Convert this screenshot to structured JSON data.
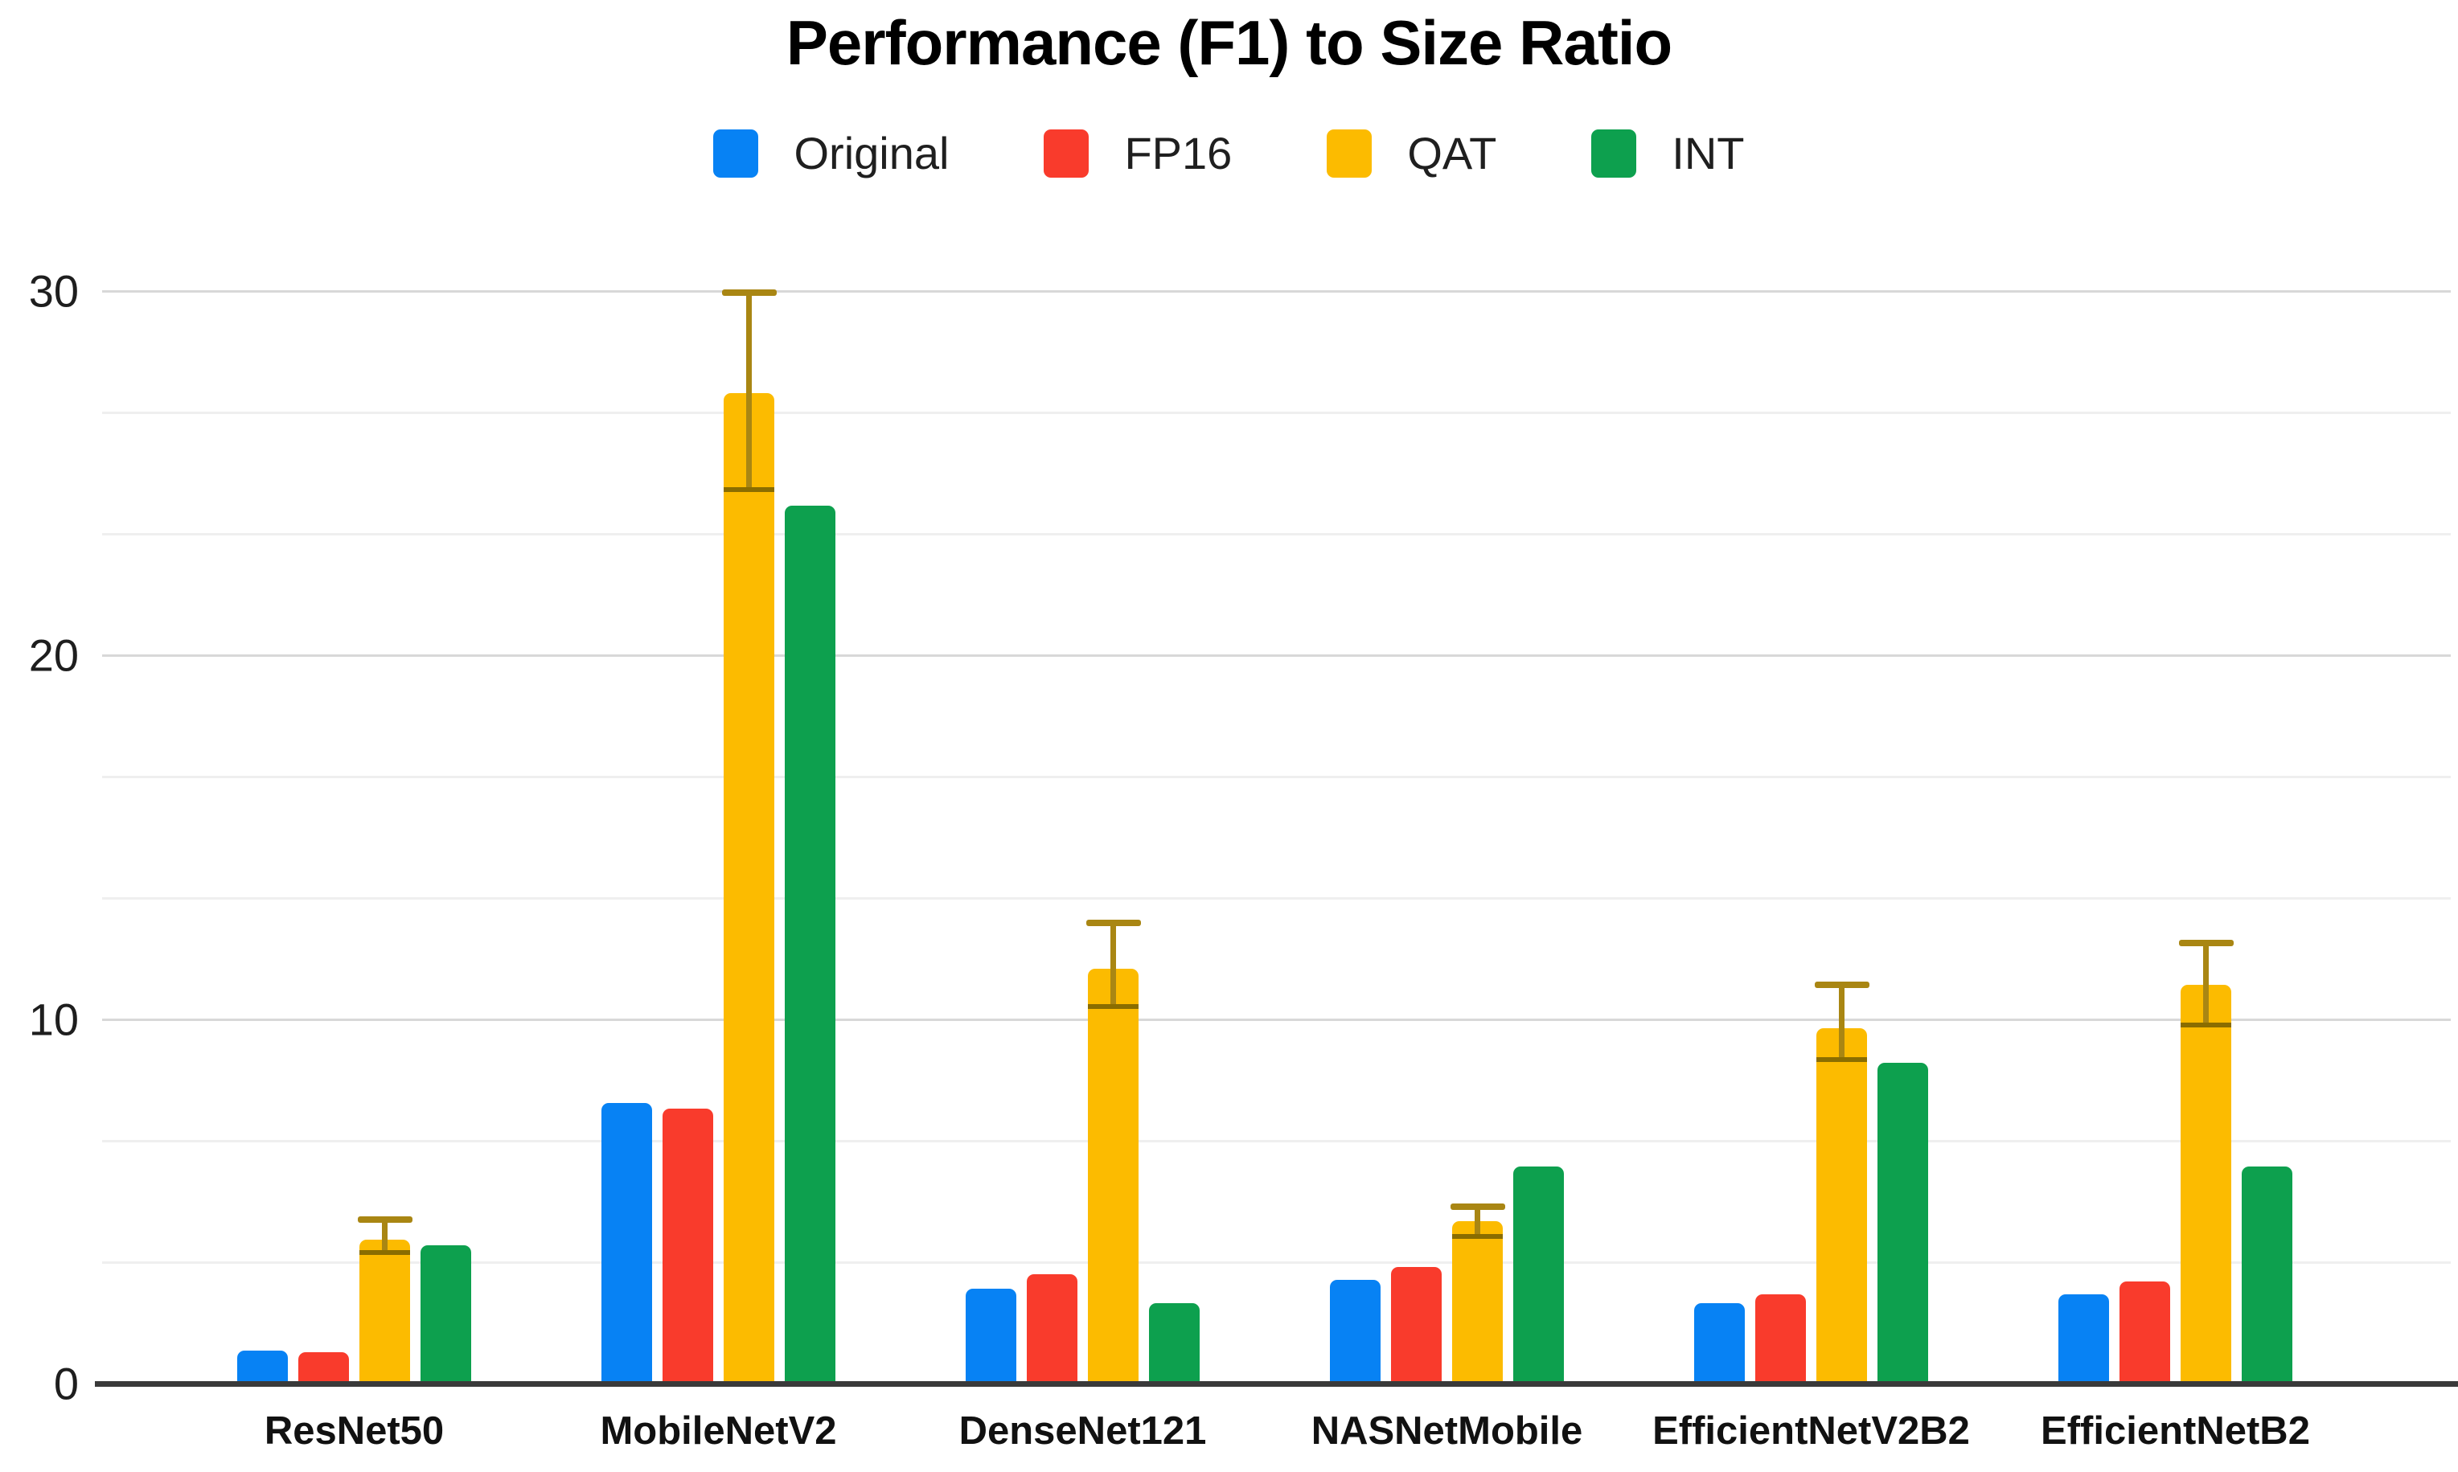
{
  "title": "Performance (F1) to Size Ratio",
  "legend": {
    "items": [
      {
        "label": "Original",
        "color": "#0782f4"
      },
      {
        "label": "FP16",
        "color": "#f93b2c"
      },
      {
        "label": "QAT",
        "color": "#fcbb00"
      },
      {
        "label": "INT",
        "color": "#0da04e"
      }
    ]
  },
  "colors": {
    "series_blue": "#0782f4",
    "series_red": "#f93b2c",
    "series_yellow": "#fcbb00",
    "series_green": "#0da04e",
    "error_bar": "#a98613",
    "error_cap_lower": "#8a6d00",
    "gridline_major": "#d8d8d8",
    "gridline_minor": "#efefef",
    "axis_line": "#3a3a3a"
  },
  "chart_data": {
    "type": "bar",
    "title": "Performance (F1) to Size Ratio",
    "xlabel": "",
    "ylabel": "",
    "ylim": [
      0,
      30
    ],
    "yticks": [
      0,
      10,
      20,
      30
    ],
    "minor_gridline_step": 3.3333,
    "grid": true,
    "legend_position": "top",
    "categories": [
      "ResNet50",
      "MobileNetV2",
      "DenseNet121",
      "NASNetMobile",
      "EfficientNetV2B2",
      "EfficientNetB2"
    ],
    "series": [
      {
        "name": "Original",
        "color": "#0782f4",
        "values": [
          0.9,
          7.7,
          2.6,
          2.85,
          2.2,
          2.45
        ]
      },
      {
        "name": "FP16",
        "color": "#f93b2c",
        "values": [
          0.85,
          7.55,
          3.0,
          3.2,
          2.45,
          2.8
        ]
      },
      {
        "name": "QAT",
        "color": "#fcbb00",
        "values": [
          3.95,
          27.2,
          11.4,
          4.45,
          9.75,
          10.95
        ],
        "error_low": [
          3.6,
          24.55,
          10.35,
          4.05,
          8.9,
          9.85
        ],
        "error_high": [
          4.5,
          29.95,
          12.65,
          4.85,
          10.95,
          12.1
        ]
      },
      {
        "name": "INT",
        "color": "#0da04e",
        "values": [
          3.8,
          24.1,
          2.2,
          5.95,
          8.8,
          5.95
        ]
      }
    ]
  }
}
